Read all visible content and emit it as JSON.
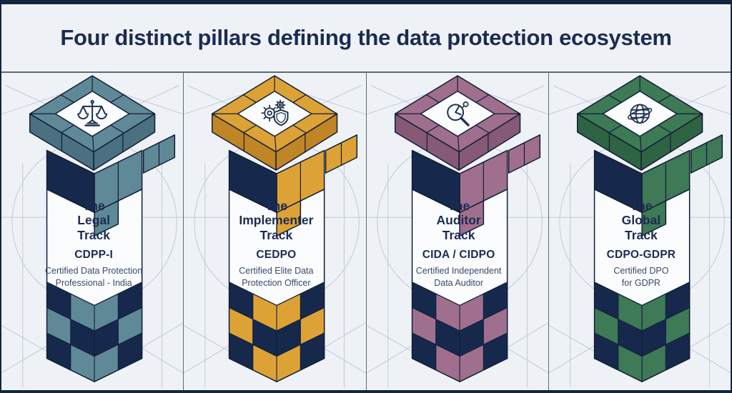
{
  "header": {
    "title": "Four distinct pillars defining the data protection ecosystem"
  },
  "pillars": [
    {
      "icon": "scales-of-justice-icon",
      "track_lines": [
        "The",
        "Legal",
        "Track"
      ],
      "code": "CDPP-I",
      "cert_lines": [
        "Certified Data Protection",
        "Professional - India"
      ],
      "colors": {
        "accent": "#5f8996",
        "accent_dark": "#4a7082"
      }
    },
    {
      "icon": "gears-shield-icon",
      "track_lines": [
        "The",
        "Implementer",
        "Track"
      ],
      "code": "CEDPO",
      "cert_lines": [
        "Certified Elite Data",
        "Protection Officer"
      ],
      "colors": {
        "accent": "#dda236",
        "accent_dark": "#c08524"
      }
    },
    {
      "icon": "magnifier-audit-icon",
      "track_lines": [
        "The",
        "Auditor",
        "Track"
      ],
      "code": "CIDA / CIDPO",
      "cert_lines": [
        "Certified Independent",
        "Data Auditor"
      ],
      "colors": {
        "accent": "#a06f8e",
        "accent_dark": "#865a77"
      }
    },
    {
      "icon": "globe-icon",
      "track_lines": [
        "The",
        "Global",
        "Track"
      ],
      "code": "CDPO-GDPR",
      "cert_lines": [
        "Certified DPO",
        "for GDPR"
      ],
      "colors": {
        "accent": "#3d7a55",
        "accent_dark": "#2e6343"
      }
    }
  ],
  "theme": {
    "background": "#eef2f6",
    "navy": "#16294d",
    "outline": "#101d36",
    "title_color": "#1c2b52",
    "text_muted": "#3a4a66",
    "divider": "#5f6b7a",
    "sketch": "#c2cad7",
    "white_face": "#fbfcfe"
  }
}
